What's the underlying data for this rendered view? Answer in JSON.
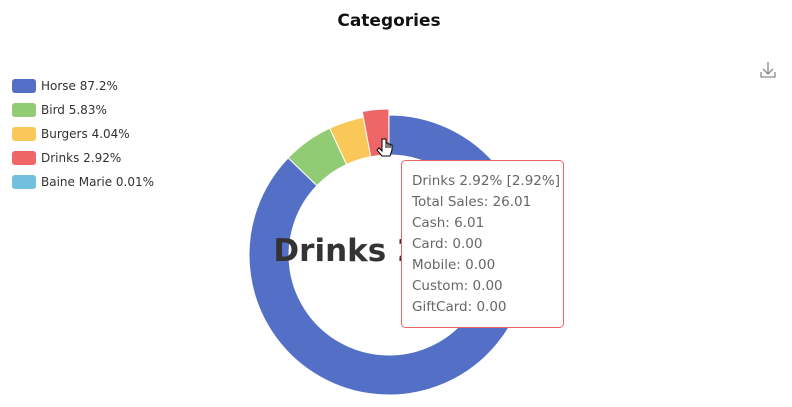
{
  "chart_data": {
    "type": "pie",
    "title": "Categories",
    "categories": [
      "Horse",
      "Bird",
      "Burgers",
      "Drinks",
      "Baine Marie"
    ],
    "values": [
      87.2,
      5.83,
      4.04,
      2.92,
      0.01
    ],
    "value_labels": [
      "87.2%",
      "5.83%",
      "4.04%",
      "2.92%",
      "0.01%"
    ],
    "colors": [
      "#5470c6",
      "#91cc75",
      "#fac858",
      "#ee6666",
      "#73c0de"
    ],
    "highlight": "Drinks",
    "tooltip": [
      "Drinks 2.92% [2.92%]",
      "Total Sales: 26.01",
      "Cash: 6.01",
      "Card: 0.00",
      "Mobile: 0.00",
      "Custom: 0.00",
      "GiftCard: 0.00"
    ]
  }
}
